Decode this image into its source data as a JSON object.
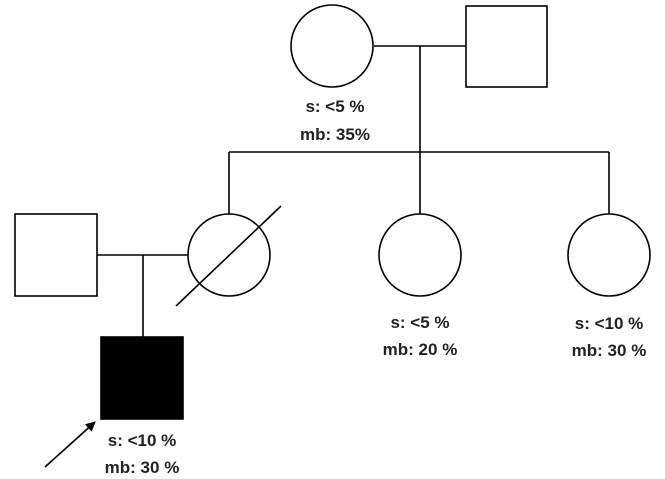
{
  "individuals": [
    {
      "id": "grandmother",
      "sex": "female",
      "affected": false,
      "deceased": false,
      "proband": false,
      "s": "s: <5 %",
      "mb": "mb: 35%"
    },
    {
      "id": "grandfather",
      "sex": "male",
      "affected": false,
      "deceased": false,
      "proband": false,
      "s": "",
      "mb": ""
    },
    {
      "id": "mother",
      "sex": "female",
      "affected": false,
      "deceased": true,
      "proband": false,
      "s": "",
      "mb": ""
    },
    {
      "id": "father",
      "sex": "male",
      "affected": false,
      "deceased": false,
      "proband": false,
      "s": "",
      "mb": ""
    },
    {
      "id": "aunt-1",
      "sex": "female",
      "affected": false,
      "deceased": false,
      "proband": false,
      "s": "s: <5 %",
      "mb": "mb: 20 %"
    },
    {
      "id": "aunt-2",
      "sex": "female",
      "affected": false,
      "deceased": false,
      "proband": false,
      "s": "s: <10 %",
      "mb": "mb: 30 %"
    },
    {
      "id": "proband",
      "sex": "male",
      "affected": true,
      "deceased": false,
      "proband": true,
      "s": "s: <10 %",
      "mb": "mb: 30 %"
    }
  ],
  "colors": {
    "line": "#000000",
    "affected_fill": "#000000",
    "unaffected_fill": "#ffffff",
    "text": "#222222"
  }
}
